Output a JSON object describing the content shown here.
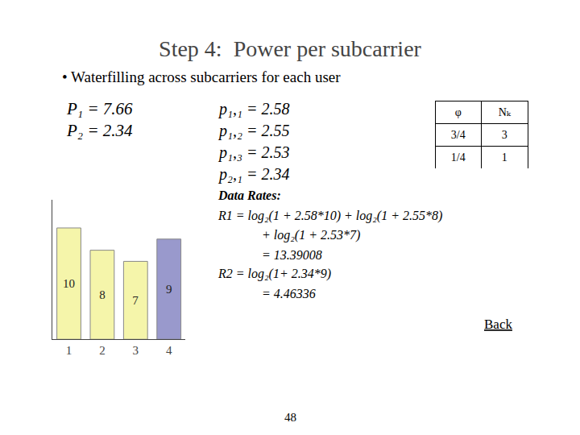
{
  "chart_data": [
    {
      "type": "bar",
      "title": "Step 4:  Power per subcarrier",
      "categories": [
        "1",
        "2",
        "3",
        "4"
      ],
      "values": [
        10,
        8,
        7,
        9
      ],
      "colors": [
        "#f5f5aa",
        "#f5f5aa",
        "#f5f5aa",
        "#9999cc"
      ],
      "ylim": [
        0,
        12.5
      ],
      "data_labels": true,
      "tick_labels": "x",
      "annotations": [
        "• Waterfilling across subcarriers for each user",
        "P₁ = 7.66",
        "P₂ = 2.34",
        "p₁,₁ = 2.58",
        "p₁,₂ = 2.55",
        "p₁,₃ = 2.53",
        "p₂,₁ = 2.34",
        "Data Rates:",
        "R1 = log₂(1 + 2.58*10) + log₂(1 + 2.55*8)",
        "+ log₂(1 + 2.53*7)",
        "= 13.39008",
        "R2 = log₂(1+ 2.34*9)",
        "= 4.46336",
        "Back",
        "48"
      ]
    },
    {
      "type": "table",
      "columns": [
        "φ",
        "Nₖ"
      ],
      "rows": [
        [
          "3/4",
          "3"
        ],
        [
          "1/4",
          "1"
        ]
      ]
    }
  ]
}
